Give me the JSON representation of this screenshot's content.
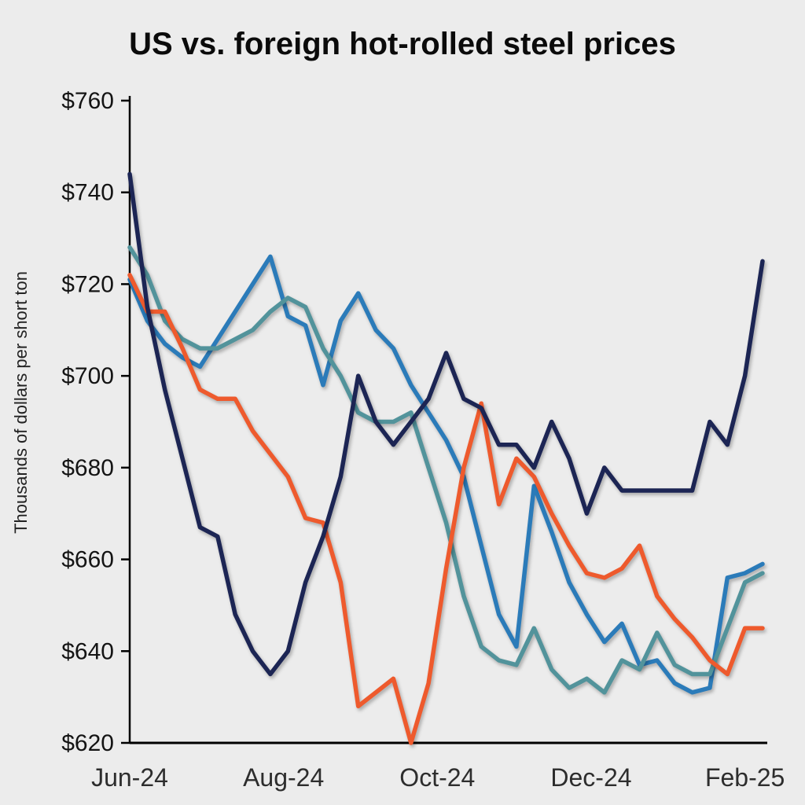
{
  "page": {
    "background": "#ececec"
  },
  "chart_data": {
    "type": "line",
    "title": "US vs. foreign hot-rolled steel prices",
    "ylabel": "Thousands of dollars per short ton",
    "xlabel": "",
    "ylim": [
      620,
      760
    ],
    "grid": false,
    "legend": "none",
    "axis_color": "#000000",
    "y_ticks": [
      {
        "value": 620,
        "label": "$620"
      },
      {
        "value": 640,
        "label": "$640"
      },
      {
        "value": 660,
        "label": "$660"
      },
      {
        "value": 680,
        "label": "$680"
      },
      {
        "value": 700,
        "label": "$700"
      },
      {
        "value": 720,
        "label": "$720"
      },
      {
        "value": 740,
        "label": "$740"
      },
      {
        "value": 760,
        "label": "$760"
      }
    ],
    "x_ticks": [
      {
        "pos": 0,
        "label": "Jun-24"
      },
      {
        "pos": 8.75,
        "label": "Aug-24"
      },
      {
        "pos": 17.5,
        "label": "Oct-24"
      },
      {
        "pos": 26.25,
        "label": "Dec-24"
      },
      {
        "pos": 35,
        "label": "Feb-25"
      }
    ],
    "x_unit": "weekly observations, Jun-24 to Feb-25",
    "series": [
      {
        "name": "blue",
        "color": "#2b7bb9",
        "values": [
          721,
          712,
          707,
          704,
          702,
          708,
          714,
          720,
          726,
          713,
          711,
          698,
          712,
          718,
          710,
          706,
          698,
          692,
          686,
          678,
          663,
          648,
          641,
          676,
          666,
          655,
          648,
          642,
          646,
          637,
          638,
          633,
          631,
          632,
          656,
          657,
          659
        ]
      },
      {
        "name": "teal",
        "color": "#52939b",
        "values": [
          728,
          722,
          712,
          708,
          706,
          706,
          708,
          710,
          714,
          717,
          715,
          706,
          700,
          692,
          690,
          690,
          692,
          680,
          668,
          652,
          641,
          638,
          637,
          645,
          636,
          632,
          634,
          631,
          638,
          636,
          644,
          637,
          635,
          635,
          645,
          655,
          657
        ]
      },
      {
        "name": "orange",
        "color": "#ee5a2d",
        "values": [
          722,
          714,
          714,
          706,
          697,
          695,
          695,
          688,
          683,
          678,
          669,
          668,
          655,
          628,
          631,
          634,
          620,
          633,
          658,
          680,
          694,
          672,
          682,
          678,
          670,
          663,
          657,
          656,
          658,
          663,
          652,
          647,
          643,
          638,
          635,
          645,
          645
        ]
      },
      {
        "name": "navy",
        "color": "#1c2554",
        "values": [
          744,
          715,
          697,
          682,
          667,
          665,
          648,
          640,
          635,
          640,
          655,
          665,
          678,
          700,
          690,
          685,
          690,
          695,
          705,
          695,
          693,
          685,
          685,
          680,
          690,
          682,
          670,
          680,
          675,
          675,
          675,
          675,
          675,
          690,
          685,
          700,
          725
        ]
      }
    ]
  }
}
